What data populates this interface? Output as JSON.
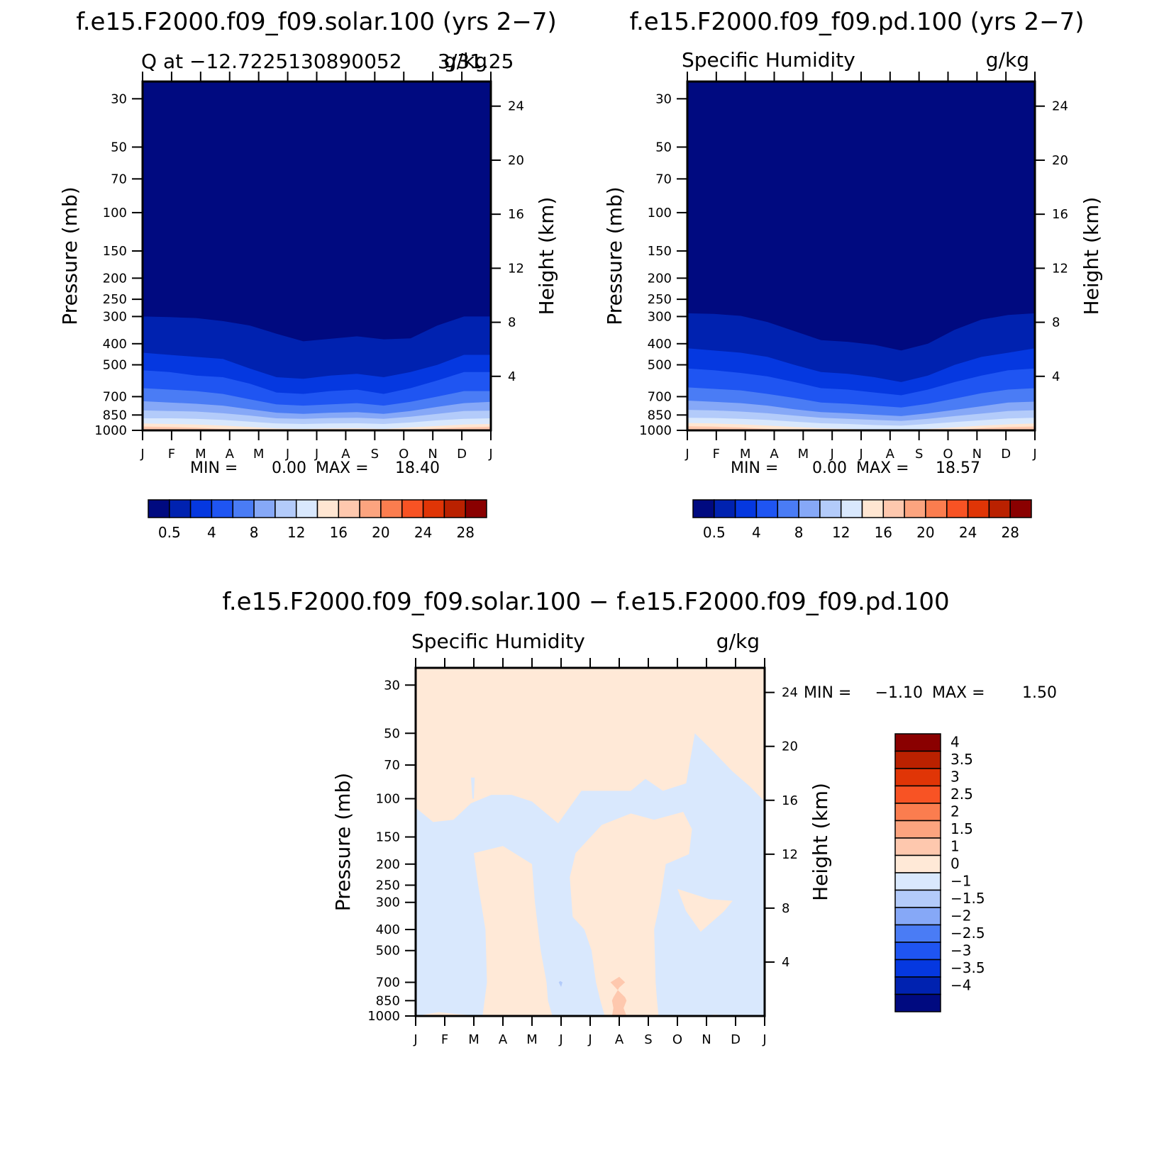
{
  "colors": {
    "abs_levels": [
      "#000a80",
      "#0022b0",
      "#0538e0",
      "#1f55f2",
      "#4a7cf5",
      "#86a8f7",
      "#b3cbfa",
      "#d9e8fd",
      "#ffe6d2",
      "#fec8ae",
      "#fca47f",
      "#fb7d4f",
      "#f85324",
      "#e03506",
      "#ba2100",
      "#8a0000"
    ],
    "diff_levels": [
      "#000a80",
      "#0022b0",
      "#0538e0",
      "#1f55f2",
      "#4a7cf5",
      "#86a8f7",
      "#b3cbfa",
      "#d9e8fd",
      "#ffe9d7",
      "#fec8ae",
      "#fca47f",
      "#fb7d4f",
      "#f85324",
      "#e03506",
      "#ba2100",
      "#8a0000"
    ]
  },
  "panels": [
    {
      "title": "f.e15.F2000.f09_f09.solar.100 (yrs 2−7)",
      "left_label": "Q at −12.7225130890052",
      "mid_label": "3/31.25",
      "right_label": "g/kg",
      "stats": {
        "min_label": "MIN =",
        "min": "0.00",
        "max_label": "MAX =",
        "max": "18.40"
      },
      "colorbar_labels": [
        "0.5",
        "4",
        "8",
        "12",
        "16",
        "20",
        "24",
        "28"
      ]
    },
    {
      "title": "f.e15.F2000.f09_f09.pd.100 (yrs 2−7)",
      "left_label": "Specific Humidity",
      "right_label": "g/kg",
      "stats": {
        "min_label": "MIN =",
        "min": "0.00",
        "max_label": "MAX =",
        "max": "18.57"
      },
      "colorbar_labels": [
        "0.5",
        "4",
        "8",
        "12",
        "16",
        "20",
        "24",
        "28"
      ]
    },
    {
      "title": "f.e15.F2000.f09_f09.solar.100 − f.e15.F2000.f09_f09.pd.100",
      "left_label": "Specific Humidity",
      "right_label": "g/kg",
      "stats": {
        "min_label": "MIN =",
        "min": "−1.10",
        "max_label": "MAX =",
        "max": "1.50"
      },
      "colorbar_labels": [
        "4",
        "3.5",
        "3",
        "2.5",
        "2",
        "1.5",
        "1",
        "0",
        "−1",
        "−1.5",
        "−2",
        "−2.5",
        "−3",
        "−3.5",
        "−4"
      ]
    }
  ],
  "axes": {
    "pressure_label": "Pressure (mb)",
    "height_label": "Height (km)",
    "pressure_ticks": [
      "30",
      "50",
      "70",
      "100",
      "150",
      "200",
      "250",
      "300",
      "400",
      "500",
      "700",
      "850",
      "1000"
    ],
    "height_ticks": [
      "24",
      "20",
      "16",
      "12",
      "8",
      "4"
    ],
    "month_ticks": [
      "J",
      "F",
      "M",
      "A",
      "M",
      "J",
      "J",
      "A",
      "S",
      "O",
      "N",
      "D",
      "J"
    ]
  },
  "chart_data": [
    {
      "type": "heatmap",
      "title": "f.e15.F2000.f09_f09.solar.100 (yrs 2−7)",
      "units": "g/kg",
      "xlabel": "",
      "ylabel": "Pressure (mb)",
      "y2label": "Height (km)",
      "x": [
        "J",
        "F",
        "M",
        "A",
        "M",
        "J",
        "J",
        "A",
        "S",
        "O",
        "N",
        "D",
        "J"
      ],
      "y_pressure_levels": [
        30,
        50,
        70,
        100,
        150,
        200,
        250,
        300,
        400,
        500,
        700,
        850,
        1000
      ],
      "ylim": [
        1000,
        25
      ],
      "y_log_scale": true,
      "y2_ticks_km": [
        4,
        8,
        12,
        16,
        20,
        24
      ],
      "contour_levels": [
        0.5,
        2,
        4,
        6,
        8,
        10,
        12,
        14,
        16,
        18,
        20,
        22,
        24,
        26,
        28
      ],
      "contours": {
        "0.5": [
          300,
          302,
          305,
          315,
          330,
          360,
          390,
          380,
          370,
          382,
          378,
          330,
          300,
          300
        ],
        "2": [
          440,
          450,
          460,
          470,
          520,
          570,
          580,
          560,
          550,
          570,
          540,
          500,
          450,
          450
        ],
        "4": [
          530,
          540,
          560,
          570,
          610,
          670,
          680,
          660,
          650,
          680,
          640,
          590,
          540,
          540
        ],
        "6": [
          640,
          650,
          660,
          680,
          720,
          760,
          770,
          760,
          750,
          770,
          740,
          700,
          660,
          660
        ],
        "8": [
          735,
          745,
          755,
          770,
          800,
          830,
          840,
          830,
          825,
          840,
          815,
          780,
          750,
          740
        ],
        "10": [
          810,
          815,
          820,
          835,
          855,
          880,
          885,
          878,
          875,
          885,
          865,
          840,
          815,
          812
        ],
        "12": [
          880,
          880,
          885,
          895,
          912,
          930,
          935,
          930,
          928,
          935,
          920,
          900,
          885,
          880
        ],
        "14": [
          930,
          935,
          940,
          950,
          965,
          980,
          985,
          980,
          978,
          985,
          970,
          955,
          940,
          935
        ],
        "16": [
          960,
          965,
          972,
          985,
          1000,
          1000,
          1000,
          1000,
          1000,
          1000,
          995,
          980,
          968,
          962
        ]
      },
      "min": 0.0,
      "max": 18.4
    },
    {
      "type": "heatmap",
      "title": "f.e15.F2000.f09_f09.pd.100 (yrs 2−7)",
      "units": "g/kg",
      "xlabel": "",
      "ylabel": "Pressure (mb)",
      "y2label": "Height (km)",
      "x": [
        "J",
        "F",
        "M",
        "A",
        "M",
        "J",
        "J",
        "A",
        "S",
        "O",
        "N",
        "D",
        "J"
      ],
      "y_pressure_levels": [
        30,
        50,
        70,
        100,
        150,
        200,
        250,
        300,
        400,
        500,
        700,
        850,
        1000
      ],
      "ylim": [
        1000,
        25
      ],
      "y_log_scale": true,
      "y2_ticks_km": [
        4,
        8,
        12,
        16,
        20,
        24
      ],
      "contour_levels": [
        0.5,
        2,
        4,
        6,
        8,
        10,
        12,
        14,
        16,
        18,
        20,
        22,
        24,
        26,
        28
      ],
      "contours": {
        "0.5": [
          290,
          292,
          298,
          318,
          350,
          385,
          392,
          405,
          430,
          400,
          345,
          310,
          295,
          290
        ],
        "2": [
          420,
          430,
          440,
          460,
          500,
          540,
          550,
          570,
          600,
          560,
          500,
          460,
          440,
          420
        ],
        "4": [
          520,
          530,
          545,
          565,
          600,
          640,
          650,
          670,
          690,
          650,
          600,
          560,
          530,
          520
        ],
        "6": [
          635,
          645,
          655,
          680,
          710,
          745,
          755,
          770,
          785,
          755,
          715,
          675,
          650,
          640
        ],
        "8": [
          730,
          740,
          750,
          770,
          800,
          825,
          835,
          848,
          860,
          835,
          805,
          775,
          745,
          738
        ],
        "10": [
          805,
          810,
          820,
          835,
          855,
          875,
          885,
          895,
          905,
          885,
          860,
          838,
          815,
          808
        ],
        "12": [
          875,
          878,
          885,
          895,
          912,
          928,
          935,
          945,
          952,
          935,
          915,
          898,
          882,
          876
        ],
        "14": [
          925,
          930,
          938,
          950,
          965,
          978,
          985,
          992,
          1000,
          985,
          968,
          952,
          938,
          930
        ],
        "16": [
          958,
          962,
          970,
          985,
          1000,
          1000,
          1000,
          1000,
          1000,
          1000,
          995,
          978,
          965,
          960
        ]
      },
      "min": 0.0,
      "max": 18.57
    },
    {
      "type": "heatmap",
      "title": "f.e15.F2000.f09_f09.solar.100 − f.e15.F2000.f09_f09.pd.100",
      "units": "g/kg",
      "xlabel": "",
      "ylabel": "Pressure (mb)",
      "y2label": "Height (km)",
      "x": [
        "J",
        "F",
        "M",
        "A",
        "M",
        "J",
        "J",
        "A",
        "S",
        "O",
        "N",
        "D",
        "J"
      ],
      "y_pressure_levels": [
        30,
        50,
        70,
        100,
        150,
        200,
        250,
        300,
        400,
        500,
        700,
        850,
        1000
      ],
      "ylim": [
        1000,
        25
      ],
      "y_log_scale": true,
      "y2_ticks_km": [
        4,
        8,
        12,
        16,
        20,
        24
      ],
      "contour_levels": [
        -4,
        -3.5,
        -3,
        -2.5,
        -2,
        -1.5,
        -1,
        0,
        1,
        1.5,
        2,
        2.5,
        3,
        3.5,
        4
      ],
      "background_range": [
        0,
        1
      ],
      "regions": [
        {
          "range": [
            -1,
            0
          ],
          "pts": [
            [
              0,
              110
            ],
            [
              0.6,
              128
            ],
            [
              1.3,
              125
            ],
            [
              1.9,
              105
            ],
            [
              2.6,
              96
            ],
            [
              3.3,
              96
            ],
            [
              4.0,
              103
            ],
            [
              4.9,
              130
            ],
            [
              5.7,
              92
            ],
            [
              6.6,
              92
            ],
            [
              7.4,
              92
            ],
            [
              7.9,
              81
            ],
            [
              8.5,
              92
            ],
            [
              9.3,
              85
            ],
            [
              9.6,
              50
            ],
            [
              10.2,
              60
            ],
            [
              10.9,
              75
            ],
            [
              11.5,
              88
            ],
            [
              12,
              103
            ],
            [
              12,
              1000
            ],
            [
              0,
              1000
            ]
          ]
        },
        {
          "range": [
            0,
            1
          ],
          "pts": [
            [
              2,
              178
            ],
            [
              3,
              165
            ],
            [
              4,
              200
            ],
            [
              4.1,
              300
            ],
            [
              4.3,
              500
            ],
            [
              4.5,
              700
            ],
            [
              4.55,
              850
            ],
            [
              4.7,
              1000
            ],
            [
              2.3,
              1000
            ],
            [
              2.45,
              700
            ],
            [
              2.4,
              400
            ],
            [
              2.15,
              250
            ]
          ]
        },
        {
          "range": [
            0,
            1
          ],
          "pts": [
            [
              5.5,
              178
            ],
            [
              6.4,
              132
            ],
            [
              7.4,
              117
            ],
            [
              8.2,
              125
            ],
            [
              9.2,
              115
            ],
            [
              9.5,
              138
            ],
            [
              9.4,
              180
            ],
            [
              8.8,
              195
            ],
            [
              8.6,
              200
            ],
            [
              8.4,
              300
            ],
            [
              8.2,
              400
            ],
            [
              8.25,
              700
            ],
            [
              8.3,
              850
            ],
            [
              8.35,
              1000
            ],
            [
              6.5,
              1000
            ],
            [
              6.35,
              850
            ],
            [
              6.2,
              700
            ],
            [
              6.05,
              500
            ],
            [
              5.8,
              400
            ],
            [
              5.4,
              350
            ],
            [
              5.3,
              230
            ]
          ]
        },
        {
          "range": [
            0,
            1
          ],
          "pts": [
            [
              9.0,
              260
            ],
            [
              10.1,
              290
            ],
            [
              10.9,
              295
            ],
            [
              10.6,
              330
            ],
            [
              9.8,
              410
            ],
            [
              9.3,
              330
            ]
          ]
        },
        {
          "range": [
            0,
            1
          ],
          "pts": [
            [
              0,
              1000
            ],
            [
              0.8,
              960
            ],
            [
              1.4,
              980
            ],
            [
              2.3,
              1000
            ]
          ]
        },
        {
          "range": [
            0,
            1
          ],
          "pts": [
            [
              9.7,
              1000
            ],
            [
              10.3,
              985
            ],
            [
              10.9,
              1000
            ]
          ]
        },
        {
          "range": [
            1,
            1.5
          ],
          "pts": [
            [
              7.0,
              660
            ],
            [
              7.2,
              700
            ],
            [
              7.0,
              740
            ],
            [
              6.95,
              760
            ],
            [
              7.2,
              820
            ],
            [
              7.25,
              850
            ],
            [
              7.15,
              920
            ],
            [
              7.25,
              1000
            ],
            [
              6.75,
              1000
            ],
            [
              6.8,
              920
            ],
            [
              6.75,
              850
            ],
            [
              6.8,
              820
            ],
            [
              6.95,
              760
            ],
            [
              6.7,
              700
            ]
          ]
        },
        {
          "range": [
            -1.5,
            -1
          ],
          "pts": [
            [
              4.97,
              690
            ],
            [
              5.05,
              700
            ],
            [
              5.0,
              735
            ],
            [
              4.92,
              700
            ]
          ]
        },
        {
          "range": [
            -1,
            0
          ],
          "pts": [
            [
              1.9,
              80
            ],
            [
              2.03,
              80
            ],
            [
              2.0,
              100
            ],
            [
              1.95,
              100
            ]
          ]
        },
        {
          "range": [
            -1,
            0
          ],
          "pts": [
            [
              9.0,
              500
            ],
            [
              9.08,
              500
            ],
            [
              9.06,
              530
            ],
            [
              9.0,
              530
            ]
          ]
        }
      ],
      "min": -1.1,
      "max": 1.5
    }
  ]
}
